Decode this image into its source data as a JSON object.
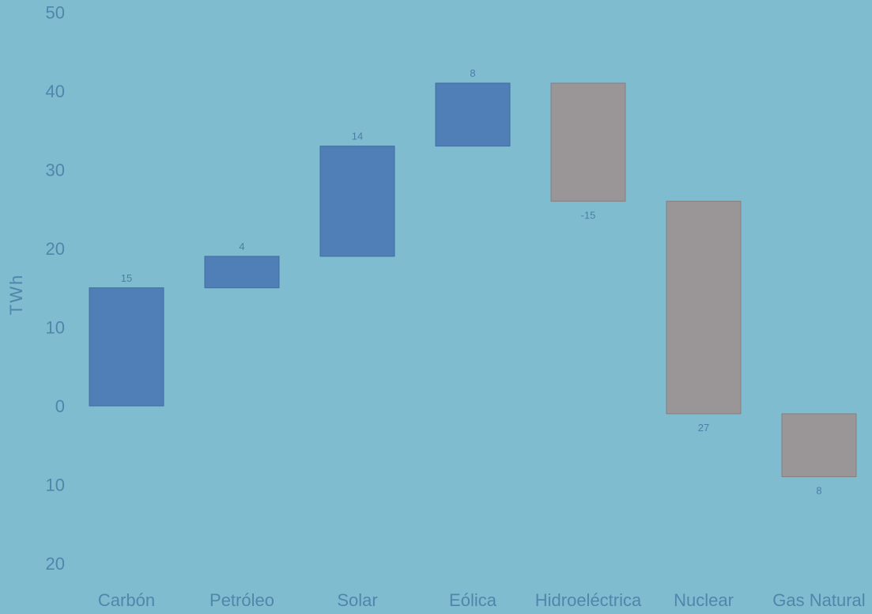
{
  "chart_data": {
    "type": "waterfall",
    "title": "",
    "xlabel": "",
    "ylabel": "TWh",
    "ylim": [
      -20,
      50
    ],
    "yticks": [
      50,
      40,
      30,
      20,
      10,
      0,
      -10,
      -20
    ],
    "ytick_labels": [
      "50",
      "40",
      "30",
      "20",
      "10",
      "0",
      "10",
      "20"
    ],
    "categories": [
      "Carbón",
      "Petróleo",
      "Solar",
      "Eólica",
      "Hidroeléctrica",
      "Nuclear",
      "Gas Natural"
    ],
    "values": [
      15,
      4,
      14,
      8,
      -15,
      -27,
      -8
    ],
    "value_labels": [
      "15",
      "4",
      "14",
      "8",
      "-15",
      "27",
      "8"
    ],
    "colors": {
      "increase": "#4f7fb6",
      "decrease": "#9a9596",
      "background": "#7fbcd0",
      "text": "#4f86ab"
    },
    "grid": false,
    "legend": "none"
  }
}
